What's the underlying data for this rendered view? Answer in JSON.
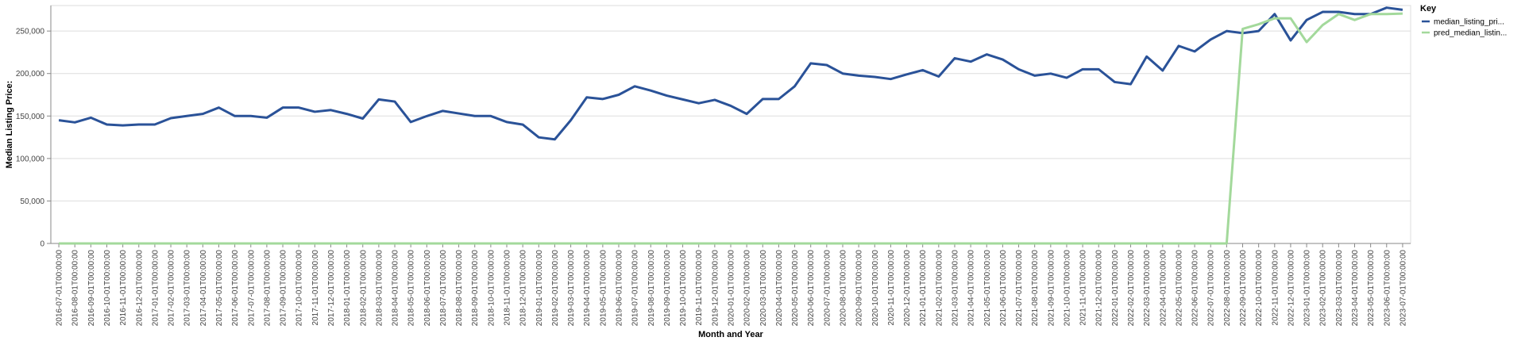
{
  "chart_data": {
    "type": "line",
    "title": "",
    "xlabel": "Month and Year",
    "ylabel": "Median Listing Price:",
    "ylim": [
      0,
      280000
    ],
    "yticks": [
      0,
      50000,
      100000,
      150000,
      200000,
      250000
    ],
    "ytick_labels": [
      "0",
      "50,000",
      "100,000",
      "150,000",
      "200,000",
      "250,000"
    ],
    "grid": true,
    "legend_position": "top-right",
    "legend_title": "Key",
    "categories": [
      "2016-07-01T00:00:00",
      "2016-08-01T00:00:00",
      "2016-09-01T00:00:00",
      "2016-10-01T00:00:00",
      "2016-11-01T00:00:00",
      "2016-12-01T00:00:00",
      "2017-01-01T00:00:00",
      "2017-02-01T00:00:00",
      "2017-03-01T00:00:00",
      "2017-04-01T00:00:00",
      "2017-05-01T00:00:00",
      "2017-06-01T00:00:00",
      "2017-07-01T00:00:00",
      "2017-08-01T00:00:00",
      "2017-09-01T00:00:00",
      "2017-10-01T00:00:00",
      "2017-11-01T00:00:00",
      "2017-12-01T00:00:00",
      "2018-01-01T00:00:00",
      "2018-02-01T00:00:00",
      "2018-03-01T00:00:00",
      "2018-04-01T00:00:00",
      "2018-05-01T00:00:00",
      "2018-06-01T00:00:00",
      "2018-07-01T00:00:00",
      "2018-08-01T00:00:00",
      "2018-09-01T00:00:00",
      "2018-10-01T00:00:00",
      "2018-11-01T00:00:00",
      "2018-12-01T00:00:00",
      "2019-01-01T00:00:00",
      "2019-02-01T00:00:00",
      "2019-03-01T00:00:00",
      "2019-04-01T00:00:00",
      "2019-05-01T00:00:00",
      "2019-06-01T00:00:00",
      "2019-07-01T00:00:00",
      "2019-08-01T00:00:00",
      "2019-09-01T00:00:00",
      "2019-10-01T00:00:00",
      "2019-11-01T00:00:00",
      "2019-12-01T00:00:00",
      "2020-01-01T00:00:00",
      "2020-02-01T00:00:00",
      "2020-03-01T00:00:00",
      "2020-04-01T00:00:00",
      "2020-05-01T00:00:00",
      "2020-06-01T00:00:00",
      "2020-07-01T00:00:00",
      "2020-08-01T00:00:00",
      "2020-09-01T00:00:00",
      "2020-10-01T00:00:00",
      "2020-11-01T00:00:00",
      "2020-12-01T00:00:00",
      "2021-01-01T00:00:00",
      "2021-02-01T00:00:00",
      "2021-03-01T00:00:00",
      "2021-04-01T00:00:00",
      "2021-05-01T00:00:00",
      "2021-06-01T00:00:00",
      "2021-07-01T00:00:00",
      "2021-08-01T00:00:00",
      "2021-09-01T00:00:00",
      "2021-10-01T00:00:00",
      "2021-11-01T00:00:00",
      "2021-12-01T00:00:00",
      "2022-01-01T00:00:00",
      "2022-02-01T00:00:00",
      "2022-03-01T00:00:00",
      "2022-04-01T00:00:00",
      "2022-05-01T00:00:00",
      "2022-06-01T00:00:00",
      "2022-07-01T00:00:00",
      "2022-08-01T00:00:00",
      "2022-09-01T00:00:00",
      "2022-10-01T00:00:00",
      "2022-11-01T00:00:00",
      "2022-12-01T00:00:00",
      "2023-01-01T00:00:00",
      "2023-02-01T00:00:00",
      "2023-03-01T00:00:00",
      "2023-04-01T00:00:00",
      "2023-05-01T00:00:00",
      "2023-06-01T00:00:00",
      "2023-07-01T00:00:00"
    ],
    "series": [
      {
        "name": "median_listing_pri...",
        "color": "#2a5298",
        "values": [
          145000,
          142500,
          148000,
          140000,
          139000,
          140000,
          140000,
          147500,
          150000,
          152500,
          159900,
          150000,
          150000,
          148000,
          159900,
          159900,
          155000,
          157000,
          152500,
          147000,
          169500,
          167000,
          142900,
          149900,
          156000,
          153000,
          150000,
          150000,
          142900,
          139900,
          124900,
          122500,
          145000,
          172000,
          170000,
          175000,
          185000,
          180000,
          174000,
          169500,
          165000,
          169000,
          162000,
          152500,
          170000,
          170000,
          185000,
          212000,
          210000,
          200000,
          197500,
          196000,
          193500,
          199000,
          204000,
          196500,
          218000,
          214000,
          222500,
          216500,
          205000,
          197500,
          199900,
          195000,
          205000,
          205000,
          190000,
          187500,
          220000,
          203500,
          232500,
          226000,
          240000,
          250000,
          247500,
          250000,
          270000,
          239000,
          263000,
          272500,
          272500,
          270000,
          270000,
          277500,
          275000
        ]
      },
      {
        "name": "pred_median_listin...",
        "color": "#a3d99b",
        "values": [
          0,
          0,
          0,
          0,
          0,
          0,
          0,
          0,
          0,
          0,
          0,
          0,
          0,
          0,
          0,
          0,
          0,
          0,
          0,
          0,
          0,
          0,
          0,
          0,
          0,
          0,
          0,
          0,
          0,
          0,
          0,
          0,
          0,
          0,
          0,
          0,
          0,
          0,
          0,
          0,
          0,
          0,
          0,
          0,
          0,
          0,
          0,
          0,
          0,
          0,
          0,
          0,
          0,
          0,
          0,
          0,
          0,
          0,
          0,
          0,
          0,
          0,
          0,
          0,
          0,
          0,
          0,
          0,
          0,
          0,
          0,
          0,
          0,
          0,
          252500,
          258000,
          265000,
          265000,
          237000,
          257000,
          270000,
          263000,
          270000,
          270000,
          270500
        ]
      }
    ]
  }
}
